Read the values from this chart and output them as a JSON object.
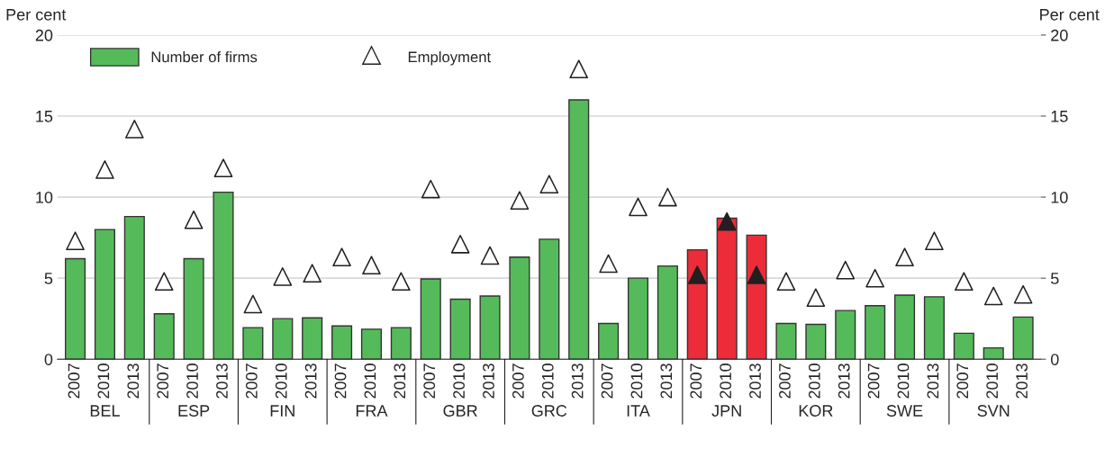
{
  "chart_data": {
    "type": "bar",
    "categories": [
      "2007",
      "2010",
      "2013",
      "2007",
      "2010",
      "2013",
      "2007",
      "2010",
      "2013",
      "2007",
      "2010",
      "2013",
      "2007",
      "2010",
      "2013",
      "2007",
      "2010",
      "2013",
      "2007",
      "2010",
      "2013",
      "2007",
      "2010",
      "2013",
      "2007",
      "2010",
      "2013",
      "2007",
      "2010",
      "2013",
      "2007",
      "2010",
      "2013"
    ],
    "series": [
      {
        "name": "Number of firms",
        "color": "#55bb5a",
        "colors": [
          "#55bb5a",
          "#55bb5a",
          "#55bb5a",
          "#55bb5a",
          "#55bb5a",
          "#55bb5a",
          "#55bb5a",
          "#55bb5a",
          "#55bb5a",
          "#55bb5a",
          "#55bb5a",
          "#55bb5a",
          "#55bb5a",
          "#55bb5a",
          "#55bb5a",
          "#55bb5a",
          "#55bb5a",
          "#55bb5a",
          "#55bb5a",
          "#55bb5a",
          "#55bb5a",
          "#ec2d39",
          "#ec2d39",
          "#ec2d39",
          "#55bb5a",
          "#55bb5a",
          "#55bb5a",
          "#55bb5a",
          "#55bb5a",
          "#55bb5a",
          "#55bb5a",
          "#55bb5a",
          "#55bb5a"
        ],
        "values": [
          6.2,
          8.0,
          8.8,
          2.8,
          6.2,
          10.3,
          1.95,
          2.5,
          2.55,
          2.05,
          1.85,
          1.95,
          4.95,
          3.7,
          3.9,
          6.3,
          7.4,
          16.0,
          2.2,
          5.0,
          5.75,
          6.75,
          8.7,
          7.65,
          2.2,
          2.15,
          3.0,
          3.3,
          3.95,
          3.85,
          1.6,
          0.7,
          2.6
        ]
      },
      {
        "name": "Employment",
        "type": "scatter",
        "marker": "triangle",
        "color": "#ffffff",
        "colors": [
          "#ffffff",
          "#ffffff",
          "#ffffff",
          "#ffffff",
          "#ffffff",
          "#ffffff",
          "#ffffff",
          "#ffffff",
          "#ffffff",
          "#ffffff",
          "#ffffff",
          "#ffffff",
          "#ffffff",
          "#ffffff",
          "#ffffff",
          "#ffffff",
          "#ffffff",
          "#ffffff",
          "#ffffff",
          "#ffffff",
          "#ffffff",
          "#231f20",
          "#231f20",
          "#231f20",
          "#ffffff",
          "#ffffff",
          "#ffffff",
          "#ffffff",
          "#ffffff",
          "#ffffff",
          "#ffffff",
          "#ffffff",
          "#ffffff"
        ],
        "values": [
          7.3,
          11.7,
          14.2,
          4.8,
          8.6,
          11.8,
          3.4,
          5.1,
          5.3,
          6.3,
          5.8,
          4.8,
          10.5,
          7.1,
          6.4,
          9.8,
          10.8,
          17.9,
          5.9,
          9.4,
          10.0,
          5.2,
          8.5,
          5.2,
          4.8,
          3.8,
          5.5,
          5.0,
          6.3,
          7.3,
          4.8,
          3.9,
          4.0
        ]
      }
    ],
    "annotations": [
      "BEL",
      "ESP",
      "FIN",
      "FRA",
      "GBR",
      "GRC",
      "ITA",
      "JPN",
      "KOR",
      "SWE",
      "SVN"
    ],
    "ylabel": "Per cent",
    "y2label": "Per cent",
    "ylim": [
      0,
      20
    ],
    "yticks": [
      0,
      5,
      10,
      15,
      20
    ],
    "y2lim": [
      0,
      20
    ],
    "y2ticks": [
      0,
      5,
      10,
      15,
      20
    ],
    "grid": "y",
    "legend": "top left"
  }
}
